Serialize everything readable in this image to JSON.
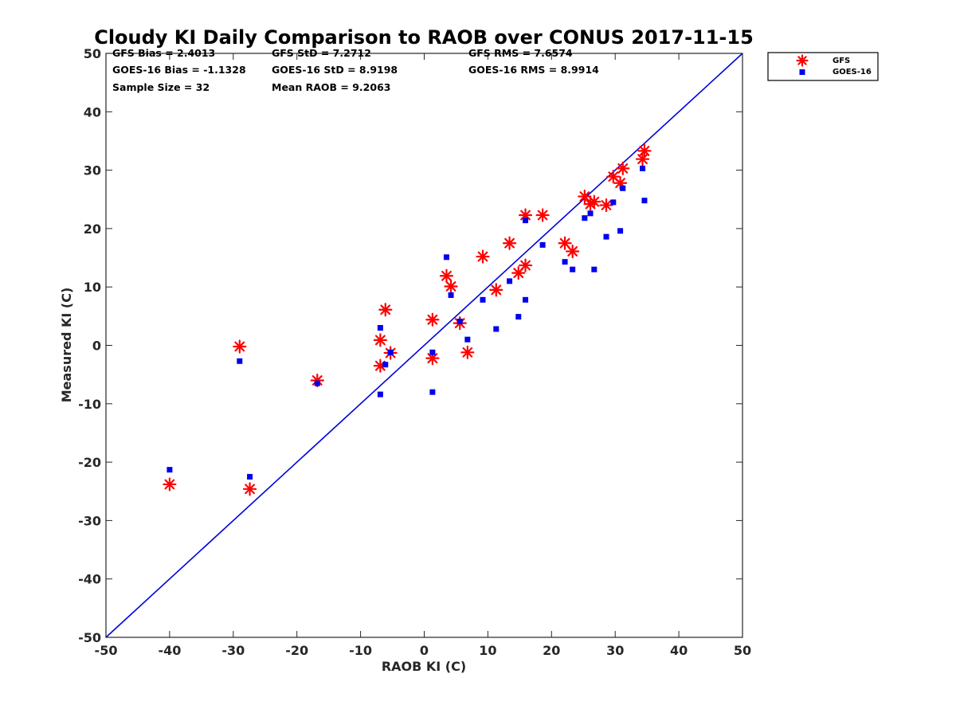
{
  "chart_data": {
    "type": "scatter",
    "title": "Cloudy KI Daily Comparison to RAOB over CONUS 2017-11-15",
    "xlabel": "RAOB KI (C)",
    "ylabel": "Measured KI (C)",
    "xlim": [
      -50,
      50
    ],
    "ylim": [
      -50,
      50
    ],
    "xticks": [
      -50,
      -40,
      -30,
      -20,
      -10,
      0,
      10,
      20,
      30,
      40,
      50
    ],
    "yticks": [
      -50,
      -40,
      -30,
      -20,
      -10,
      0,
      10,
      20,
      30,
      40,
      50
    ],
    "grid": false,
    "legend_position": "outside-top-right",
    "stats": [
      "GFS Bias = 2.4013",
      "GFS StD = 7.2712",
      "GFS RMS = 7.6574",
      "GOES-16 Bias = -1.1328",
      "GOES-16 StD = 8.9198",
      "GOES-16 RMS = 8.9914",
      "Sample Size = 32",
      "Mean RAOB = 9.2063"
    ],
    "reference_line": {
      "x": [
        -50,
        50
      ],
      "y": [
        -50,
        50
      ],
      "color": "#0000dd"
    },
    "series": [
      {
        "name": "GFS",
        "marker": "asterisk",
        "color": "#ff0000",
        "points": [
          [
            -40.0,
            -23.8
          ],
          [
            -29.0,
            -0.2
          ],
          [
            -27.4,
            -24.6
          ],
          [
            -16.8,
            -6.0
          ],
          [
            -6.9,
            0.9
          ],
          [
            -6.9,
            -3.5
          ],
          [
            -6.1,
            6.1
          ],
          [
            -5.3,
            -1.3
          ],
          [
            1.3,
            4.4
          ],
          [
            1.3,
            -2.2
          ],
          [
            3.5,
            11.9
          ],
          [
            4.2,
            10.1
          ],
          [
            5.6,
            3.8
          ],
          [
            6.8,
            -1.2
          ],
          [
            9.2,
            15.2
          ],
          [
            11.3,
            9.5
          ],
          [
            13.4,
            17.5
          ],
          [
            14.8,
            12.4
          ],
          [
            15.9,
            13.7
          ],
          [
            15.9,
            22.3
          ],
          [
            18.6,
            22.3
          ],
          [
            22.1,
            17.5
          ],
          [
            23.3,
            16.1
          ],
          [
            25.2,
            25.5
          ],
          [
            26.1,
            24.2
          ],
          [
            26.7,
            24.6
          ],
          [
            28.6,
            24.0
          ],
          [
            29.7,
            28.9
          ],
          [
            30.8,
            27.8
          ],
          [
            31.2,
            30.3
          ],
          [
            34.3,
            31.9
          ],
          [
            34.6,
            33.3
          ]
        ]
      },
      {
        "name": "GOES-16",
        "marker": "square",
        "color": "#0000ee",
        "points": [
          [
            -40.0,
            -21.3
          ],
          [
            -29.0,
            -2.7
          ],
          [
            -27.4,
            -22.5
          ],
          [
            -16.8,
            -6.5
          ],
          [
            -6.9,
            3.0
          ],
          [
            -6.9,
            -8.4
          ],
          [
            -6.1,
            -3.3
          ],
          [
            -5.3,
            -1.2
          ],
          [
            1.3,
            -1.2
          ],
          [
            1.3,
            -8.0
          ],
          [
            3.5,
            15.1
          ],
          [
            4.2,
            8.6
          ],
          [
            5.6,
            4.1
          ],
          [
            6.8,
            1.0
          ],
          [
            9.2,
            7.8
          ],
          [
            11.3,
            2.8
          ],
          [
            13.4,
            11.0
          ],
          [
            14.8,
            4.9
          ],
          [
            15.9,
            7.8
          ],
          [
            15.9,
            21.4
          ],
          [
            18.6,
            17.2
          ],
          [
            22.1,
            14.3
          ],
          [
            23.3,
            13.0
          ],
          [
            25.2,
            21.8
          ],
          [
            26.1,
            22.6
          ],
          [
            26.7,
            13.0
          ],
          [
            28.6,
            18.6
          ],
          [
            29.7,
            24.5
          ],
          [
            30.8,
            19.6
          ],
          [
            31.2,
            26.9
          ],
          [
            34.3,
            30.3
          ],
          [
            34.6,
            24.8
          ]
        ]
      }
    ]
  }
}
